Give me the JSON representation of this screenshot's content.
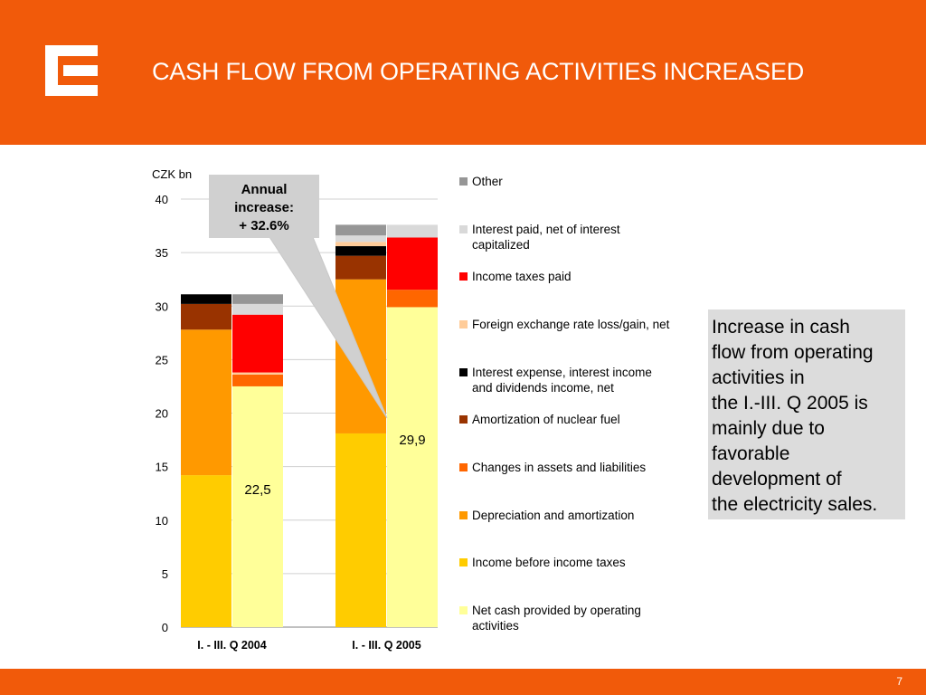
{
  "slide": {
    "title": "CASH FLOW FROM OPERATING ACTIVITIES INCREASED",
    "page_number": "7",
    "brand_color": "#f15a0a",
    "logo_icon": "cez-logo-icon"
  },
  "note": {
    "lines": [
      "Increase in cash",
      "flow from operating",
      "activities in",
      "the I.-III. Q 2005 is",
      "mainly due to",
      "favorable",
      "development of",
      "the electricity sales."
    ]
  },
  "callout": {
    "lines": [
      "Annual",
      "increase:",
      "+ 32.6%"
    ]
  },
  "chart_data": {
    "type": "bar",
    "stacked": true,
    "unit_label": "CZK bn",
    "ylim": [
      0,
      40
    ],
    "yticks": [
      "0",
      "5",
      "10",
      "15",
      "20",
      "25",
      "30",
      "35",
      "40"
    ],
    "grid": true,
    "legend_position": "right",
    "categories": [
      "I. - III. Q 2004",
      "I. - III. Q 2005"
    ],
    "components": [
      {
        "name": "Income before income taxes",
        "color": "#ffcc00",
        "values": [
          14.2,
          18.1
        ]
      },
      {
        "name": "Depreciation and amortization",
        "color": "#ff9900",
        "values": [
          13.6,
          14.4
        ]
      },
      {
        "name": "Amortization of nuclear fuel",
        "color": "#993300",
        "values": [
          2.4,
          2.2
        ]
      },
      {
        "name": "Interest expense, interest income and dividends income, net",
        "color": "#000000",
        "values": [
          0.9,
          0.9
        ]
      },
      {
        "name": "Foreign exchange rate loss/gain, net",
        "color": "#ffcc99",
        "values": [
          0,
          0.4
        ]
      },
      {
        "name": "Interest paid, net of interest capitalized",
        "color": "#d9d9d9",
        "values": [
          0,
          0.6
        ]
      },
      {
        "name": "Other",
        "color": "#969696",
        "values": [
          0,
          1.0
        ]
      }
    ],
    "deductions": [
      {
        "name": "Other",
        "color": "#969696",
        "values": [
          0.9,
          0
        ]
      },
      {
        "name": "Interest paid, net of interest capitalized",
        "color": "#d9d9d9",
        "values": [
          1.0,
          1.1
        ]
      },
      {
        "name": "Income taxes paid",
        "color": "#ff0000",
        "values": [
          5.4,
          4.5
        ]
      },
      {
        "name": "Foreign exchange rate loss/gain, net",
        "color": "#ffcc99",
        "values": [
          0.2,
          0
        ]
      },
      {
        "name": "Changes in assets and liabilities",
        "color": "#ff6600",
        "values": [
          1.1,
          1.5
        ]
      }
    ],
    "net_cash": {
      "name": "Net cash provided by operating activities",
      "color": "#ffff99",
      "values": [
        22.5,
        29.9
      ],
      "labels": [
        "22,5",
        "29,9"
      ]
    },
    "legend": [
      {
        "name": "Other",
        "color": "#969696",
        "lines": [
          "Other"
        ]
      },
      {
        "name": "Interest paid, net of interest capitalized",
        "color": "#d9d9d9",
        "lines": [
          "Interest paid, net of interest",
          "capitalized"
        ]
      },
      {
        "name": "Income taxes paid",
        "color": "#ff0000",
        "lines": [
          "Income taxes paid"
        ]
      },
      {
        "name": "Foreign exchange rate loss/gain, net",
        "color": "#ffcc99",
        "lines": [
          "Foreign exchange rate loss/gain, net"
        ]
      },
      {
        "name": "Interest expense, interest income and dividends income, net",
        "color": "#000000",
        "lines": [
          "Interest expense, interest income",
          "and dividends income, net"
        ]
      },
      {
        "name": "Amortization of nuclear fuel",
        "color": "#993300",
        "lines": [
          "Amortization of nuclear fuel"
        ]
      },
      {
        "name": "Changes in assets and liabilities",
        "color": "#ff6600",
        "lines": [
          "Changes in assets and liabilities"
        ]
      },
      {
        "name": "Depreciation and amortization",
        "color": "#ff9900",
        "lines": [
          "Depreciation and amortization"
        ]
      },
      {
        "name": "Income before income taxes",
        "color": "#ffcc00",
        "lines": [
          "Income before income taxes"
        ]
      },
      {
        "name": "Net cash provided by operating activities",
        "color": "#ffff99",
        "lines": [
          "Net cash provided by operating",
          "activities"
        ]
      }
    ]
  }
}
